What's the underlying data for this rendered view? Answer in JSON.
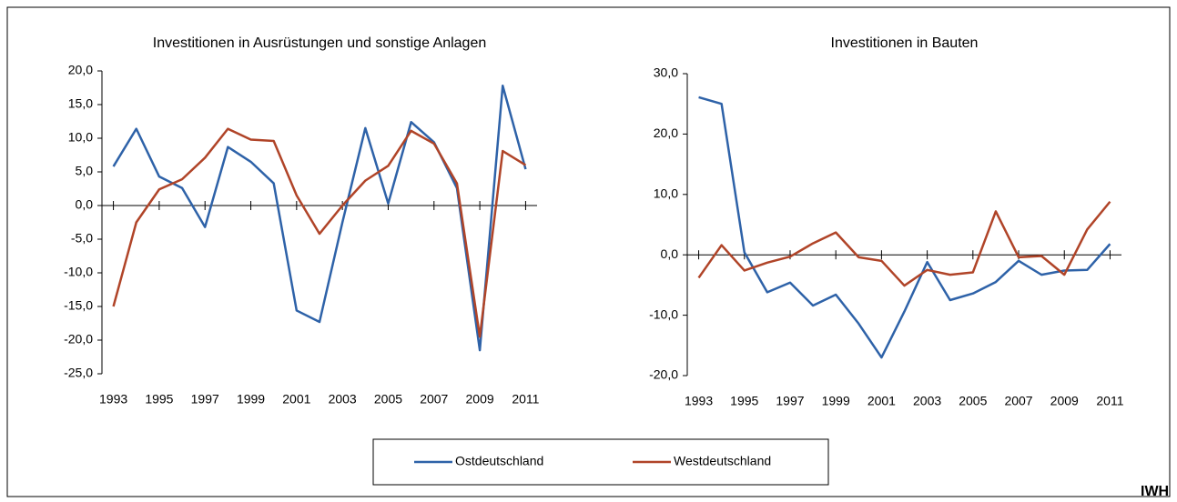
{
  "chart_data": [
    {
      "type": "line",
      "title": "Investitionen in Ausrüstungen und sonstige Anlagen",
      "x": [
        1993,
        1994,
        1995,
        1996,
        1997,
        1998,
        1999,
        2000,
        2001,
        2002,
        2003,
        2004,
        2005,
        2006,
        2007,
        2008,
        2009,
        2010,
        2011
      ],
      "xlim": [
        1992.5,
        2011.5
      ],
      "xticks": [
        1993,
        1995,
        1997,
        1999,
        2001,
        2003,
        2005,
        2007,
        2009,
        2011
      ],
      "ylim": [
        -25,
        20
      ],
      "yticks": [
        {
          "value": -25,
          "label": "-25,0"
        },
        {
          "value": -20,
          "label": "-20,0"
        },
        {
          "value": -15,
          "label": "-15,0"
        },
        {
          "value": -10,
          "label": "-10,0"
        },
        {
          "value": -5,
          "label": "-5,0"
        },
        {
          "value": 0,
          "label": "0,0"
        },
        {
          "value": 5,
          "label": "5,0"
        },
        {
          "value": 10,
          "label": "10,0"
        },
        {
          "value": 15,
          "label": "15,0"
        },
        {
          "value": 20,
          "label": "20,0"
        }
      ],
      "series": [
        {
          "name": "Ostdeutschland",
          "color": "#2e62a8",
          "values": [
            5.8,
            11.4,
            4.3,
            2.6,
            -3.2,
            8.7,
            6.5,
            3.3,
            -15.6,
            -17.3,
            -2.5,
            11.5,
            0.3,
            12.4,
            9.4,
            2.6,
            -21.5,
            17.8,
            5.4
          ]
        },
        {
          "name": "Westdeutschland",
          "color": "#b04428",
          "values": [
            -15.0,
            -2.5,
            2.4,
            3.9,
            7.1,
            11.4,
            9.8,
            9.6,
            1.5,
            -4.2,
            0.0,
            3.7,
            5.9,
            11.1,
            9.2,
            3.3,
            -19.5,
            8.1,
            6.0
          ]
        }
      ]
    },
    {
      "type": "line",
      "title": "Investitionen in Bauten",
      "x": [
        1993,
        1994,
        1995,
        1996,
        1997,
        1998,
        1999,
        2000,
        2001,
        2002,
        2003,
        2004,
        2005,
        2006,
        2007,
        2008,
        2009,
        2010,
        2011
      ],
      "xlim": [
        1992.5,
        2011.5
      ],
      "xticks": [
        1993,
        1995,
        1997,
        1999,
        2001,
        2003,
        2005,
        2007,
        2009,
        2011
      ],
      "ylim": [
        -20,
        30
      ],
      "yticks": [
        {
          "value": -20,
          "label": "-20,0"
        },
        {
          "value": -10,
          "label": "-10,0"
        },
        {
          "value": 0,
          "label": "0,0"
        },
        {
          "value": 10,
          "label": "10,0"
        },
        {
          "value": 20,
          "label": "20,0"
        },
        {
          "value": 30,
          "label": "30,0"
        }
      ],
      "series": [
        {
          "name": "Ostdeutschland",
          "color": "#2e62a8",
          "values": [
            26.1,
            25.0,
            0.4,
            -6.2,
            -4.6,
            -8.4,
            -6.6,
            -11.4,
            -17.0,
            -9.4,
            -1.2,
            -7.5,
            -6.4,
            -4.5,
            -1.0,
            -3.3,
            -2.6,
            -2.5,
            1.8
          ]
        },
        {
          "name": "Westdeutschland",
          "color": "#b04428",
          "values": [
            -3.8,
            1.6,
            -2.6,
            -1.3,
            -0.3,
            1.9,
            3.7,
            -0.4,
            -1.0,
            -5.1,
            -2.5,
            -3.3,
            -2.9,
            7.2,
            -0.4,
            -0.2,
            -3.3,
            4.2,
            8.8
          ]
        }
      ]
    }
  ],
  "footer": "IWH"
}
